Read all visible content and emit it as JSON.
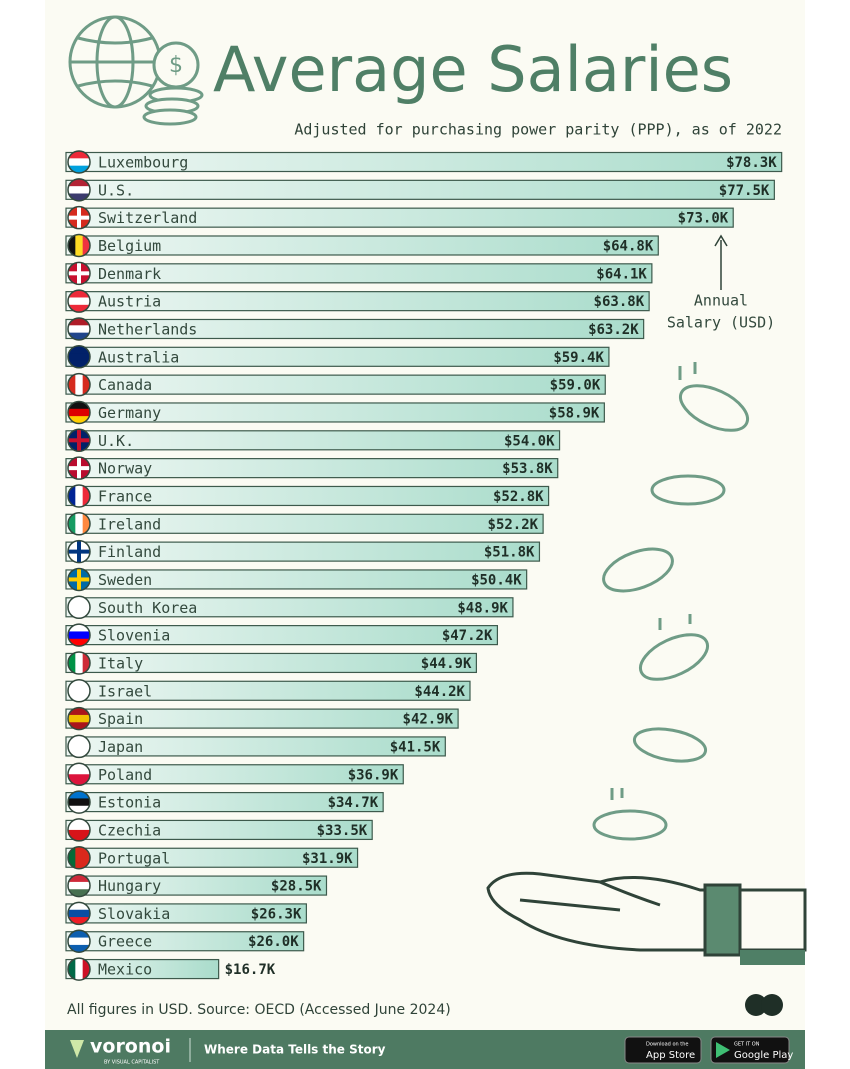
{
  "chart_data": {
    "type": "bar",
    "title": "Average Salaries",
    "subtitle": "Adjusted for purchasing power parity (PPP), as of 2022",
    "annotation": [
      "Annual",
      "Salary (USD)"
    ],
    "categories": [
      "Luxembourg",
      "U.S.",
      "Switzerland",
      "Belgium",
      "Denmark",
      "Austria",
      "Netherlands",
      "Australia",
      "Canada",
      "Germany",
      "U.K.",
      "Norway",
      "France",
      "Ireland",
      "Finland",
      "Sweden",
      "South Korea",
      "Slovenia",
      "Italy",
      "Israel",
      "Spain",
      "Japan",
      "Poland",
      "Estonia",
      "Czechia",
      "Portugal",
      "Hungary",
      "Slovakia",
      "Greece",
      "Mexico"
    ],
    "values": [
      78.3,
      77.5,
      73.0,
      64.8,
      64.1,
      63.8,
      63.2,
      59.4,
      59.0,
      58.9,
      54.0,
      53.8,
      52.8,
      52.2,
      51.8,
      50.4,
      48.9,
      47.2,
      44.9,
      44.2,
      42.9,
      41.5,
      36.9,
      34.7,
      33.5,
      31.9,
      28.5,
      26.3,
      26.0,
      16.7
    ],
    "value_labels": [
      "$78.3K",
      "$77.5K",
      "$73.0K",
      "$64.8K",
      "$64.1K",
      "$63.8K",
      "$63.2K",
      "$59.4K",
      "$59.0K",
      "$58.9K",
      "$54.0K",
      "$53.8K",
      "$52.8K",
      "$52.2K",
      "$51.8K",
      "$50.4K",
      "$48.9K",
      "$47.2K",
      "$44.9K",
      "$44.2K",
      "$42.9K",
      "$41.5K",
      "$36.9K",
      "$34.7K",
      "$33.5K",
      "$31.9K",
      "$28.5K",
      "$26.3K",
      "$26.0K",
      "$16.7K"
    ],
    "color": "#a9dccb",
    "source": "All figures in USD. Source: OECD (Accessed June 2024)"
  },
  "footer": {
    "brand": "voronoi",
    "brand_sub": "BY VISUAL CAPITALIST",
    "tagline": "Where Data Tells the Story",
    "app_store": {
      "small": "Download on the",
      "big": "App Store"
    },
    "google_play": {
      "small": "GET IT ON",
      "big": "Google Play"
    }
  }
}
